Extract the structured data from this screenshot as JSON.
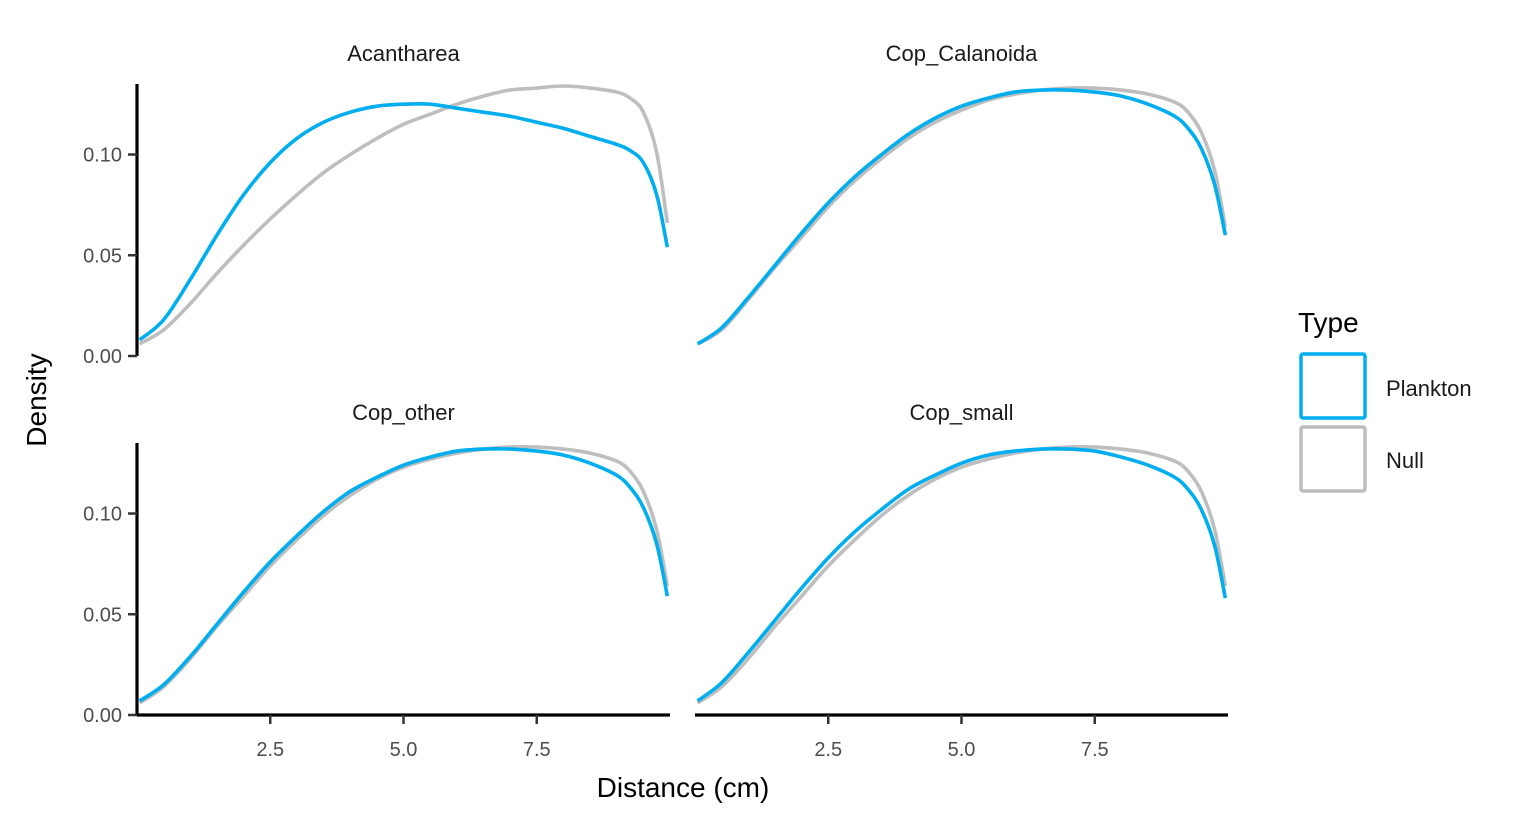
{
  "chart_data": {
    "type": "line",
    "subtype": "density-facets",
    "xlabel": "Distance (cm)",
    "ylabel": "Density",
    "xlim": [
      0,
      10
    ],
    "ylim": [
      0,
      0.135
    ],
    "x_ticks": [
      "2.5",
      "5.0",
      "7.5"
    ],
    "x_tick_values": [
      2.5,
      5.0,
      7.5
    ],
    "y_ticks": [
      "0.00",
      "0.05",
      "0.10"
    ],
    "y_tick_values": [
      0.0,
      0.05,
      0.1
    ],
    "grid": false,
    "legend": {
      "title": "Type",
      "position": "right",
      "entries": [
        {
          "label": "Plankton",
          "color": "#00AEEF"
        },
        {
          "label": "Null",
          "color": "#BEBEBE"
        }
      ]
    },
    "x": [
      0.05,
      0.5,
      1.0,
      1.5,
      2.0,
      2.5,
      3.0,
      3.5,
      4.0,
      4.5,
      5.0,
      5.5,
      6.0,
      6.5,
      7.0,
      7.5,
      8.0,
      8.5,
      9.0,
      9.25,
      9.5,
      9.75,
      9.95
    ],
    "facets": [
      {
        "title": "Acantharea",
        "series": [
          {
            "name": "Plankton",
            "values": [
              0.008,
              0.018,
              0.038,
              0.06,
              0.08,
              0.096,
              0.108,
              0.116,
              0.121,
              0.124,
              0.125,
              0.125,
              0.123,
              0.121,
              0.119,
              0.116,
              0.113,
              0.109,
              0.105,
              0.102,
              0.096,
              0.08,
              0.054
            ]
          },
          {
            "name": "Null",
            "values": [
              0.006,
              0.013,
              0.026,
              0.041,
              0.055,
              0.068,
              0.08,
              0.091,
              0.1,
              0.108,
              0.115,
              0.12,
              0.125,
              0.129,
              0.132,
              0.133,
              0.134,
              0.133,
              0.131,
              0.128,
              0.121,
              0.101,
              0.066
            ]
          }
        ]
      },
      {
        "title": "Cop_Calanoida",
        "series": [
          {
            "name": "Plankton",
            "values": [
              0.006,
              0.014,
              0.029,
              0.045,
              0.061,
              0.076,
              0.089,
              0.1,
              0.11,
              0.118,
              0.124,
              0.128,
              0.131,
              0.132,
              0.132,
              0.131,
              0.129,
              0.125,
              0.119,
              0.113,
              0.103,
              0.085,
              0.06
            ]
          },
          {
            "name": "Null",
            "values": [
              0.006,
              0.013,
              0.028,
              0.044,
              0.059,
              0.074,
              0.087,
              0.098,
              0.108,
              0.116,
              0.122,
              0.127,
              0.13,
              0.132,
              0.133,
              0.133,
              0.132,
              0.13,
              0.126,
              0.121,
              0.111,
              0.092,
              0.064
            ]
          }
        ]
      },
      {
        "title": "Cop_other",
        "series": [
          {
            "name": "Plankton",
            "values": [
              0.007,
              0.015,
              0.029,
              0.045,
              0.061,
              0.076,
              0.089,
              0.101,
              0.111,
              0.118,
              0.124,
              0.128,
              0.131,
              0.132,
              0.132,
              0.131,
              0.129,
              0.125,
              0.119,
              0.113,
              0.103,
              0.085,
              0.059
            ]
          },
          {
            "name": "Null",
            "values": [
              0.006,
              0.014,
              0.028,
              0.044,
              0.059,
              0.074,
              0.087,
              0.099,
              0.109,
              0.117,
              0.123,
              0.127,
              0.13,
              0.132,
              0.133,
              0.133,
              0.132,
              0.13,
              0.126,
              0.121,
              0.111,
              0.092,
              0.064
            ]
          }
        ]
      },
      {
        "title": "Cop_small",
        "series": [
          {
            "name": "Plankton",
            "values": [
              0.007,
              0.016,
              0.031,
              0.047,
              0.063,
              0.078,
              0.091,
              0.102,
              0.112,
              0.119,
              0.125,
              0.129,
              0.131,
              0.132,
              0.132,
              0.131,
              0.128,
              0.124,
              0.118,
              0.112,
              0.102,
              0.084,
              0.058
            ]
          },
          {
            "name": "Null",
            "values": [
              0.006,
              0.014,
              0.028,
              0.044,
              0.059,
              0.074,
              0.087,
              0.099,
              0.109,
              0.117,
              0.123,
              0.127,
              0.13,
              0.132,
              0.133,
              0.133,
              0.132,
              0.13,
              0.126,
              0.121,
              0.111,
              0.092,
              0.064
            ]
          }
        ]
      }
    ]
  }
}
